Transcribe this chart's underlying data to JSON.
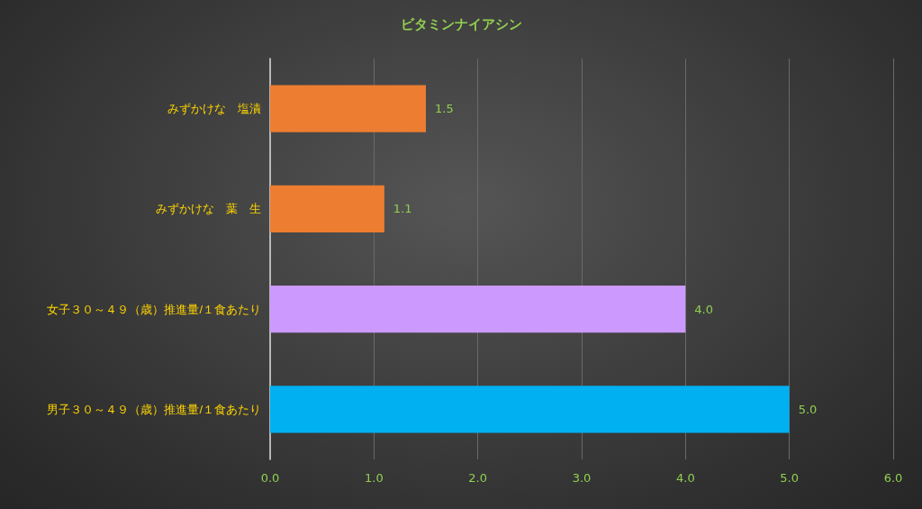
{
  "chart_data": {
    "type": "bar",
    "orientation": "horizontal",
    "title": "ビタミンナイアシン",
    "categories": [
      "みずかけな　塩漬",
      "みずかけな　葉　生",
      "女子３０～４９（歳）推進量/１食あたり",
      "男子３０～４９（歳）推進量/１食あたり"
    ],
    "values": [
      1.5,
      1.1,
      4.0,
      5.0
    ],
    "colors": [
      "#ed7d31",
      "#ed7d31",
      "#cc99ff",
      "#00b0f0"
    ],
    "value_labels": [
      "1.5",
      "1.1",
      "4.0",
      "5.0"
    ],
    "xlim": [
      0,
      6
    ],
    "xticks": [
      {
        "value": 0,
        "label": "0.0"
      },
      {
        "value": 1,
        "label": "1.0"
      },
      {
        "value": 2,
        "label": "2.0"
      },
      {
        "value": 3,
        "label": "3.0"
      },
      {
        "value": 4,
        "label": "4.0"
      },
      {
        "value": 5,
        "label": "5.0"
      },
      {
        "value": 6,
        "label": "6.0"
      }
    ],
    "grid": "x"
  }
}
